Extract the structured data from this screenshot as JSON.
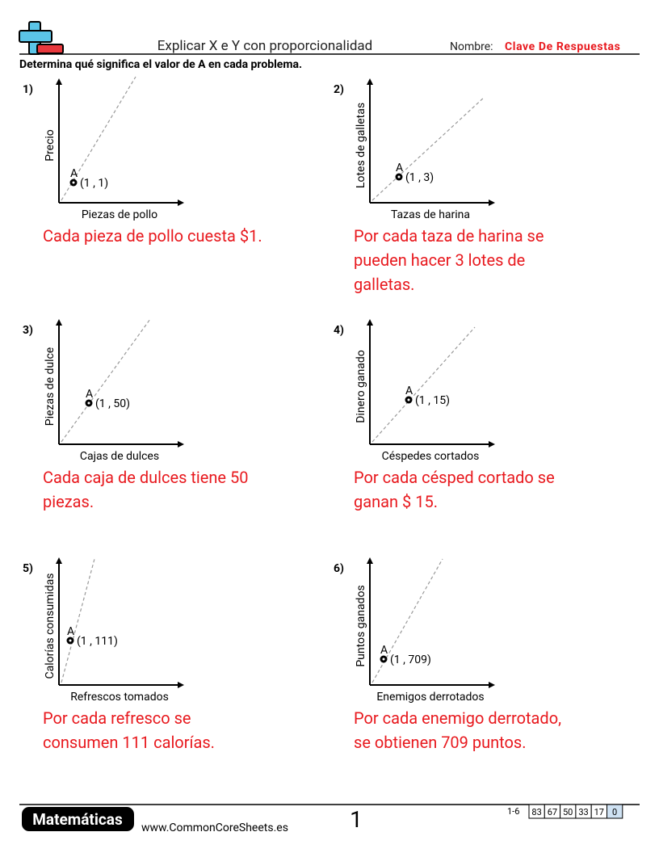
{
  "header": {
    "title": "Explicar X e Y con proporcionalidad",
    "name_label": "Nombre:",
    "name_value": "Clave De Respuestas",
    "instructions": "Determina qué significa el valor de A en cada problema."
  },
  "problems": [
    {
      "number": "1)",
      "y_label": "Precio",
      "x_label": "Piezas de pollo",
      "point_name": "A",
      "point_label": "(1 , 1)",
      "answer": [
        "Cada pieza de pollo cuesta $1."
      ]
    },
    {
      "number": "2)",
      "y_label": "Lotes de galletas",
      "x_label": "Tazas de harina",
      "point_name": "A",
      "point_label": "(1 , 3)",
      "answer": [
        "Por cada taza de harina se",
        "pueden hacer 3 lotes de",
        "galletas."
      ]
    },
    {
      "number": "3)",
      "y_label": "Piezas de dulce",
      "x_label": "Cajas de dulces",
      "point_name": "A",
      "point_label": "(1 , 50)",
      "answer": [
        "Cada caja de dulces tiene 50",
        "piezas."
      ]
    },
    {
      "number": "4)",
      "y_label": "Dinero ganado",
      "x_label": "Céspedes cortados",
      "point_name": "A",
      "point_label": "(1 , 15)",
      "answer": [
        "Por cada césped cortado se",
        "ganan $ 15."
      ]
    },
    {
      "number": "5)",
      "y_label": "Calorías consumidas",
      "x_label": "Refrescos tomados",
      "point_name": "A",
      "point_label": "(1 , 111)",
      "answer": [
        "Por cada refresco se",
        "consumen 111 calorías."
      ]
    },
    {
      "number": "6)",
      "y_label": "Puntos ganados",
      "x_label": "Enemigos derrotados",
      "point_name": "A",
      "point_label": "(1 , 709)",
      "answer": [
        "Por cada enemigo derrotado,",
        "se obtienen 709 puntos."
      ]
    }
  ],
  "footer": {
    "brand": "Matemáticas",
    "website": "www.CommonCoreSheets.es",
    "page": "1",
    "range": "1-6",
    "scores": [
      "83",
      "67",
      "50",
      "33",
      "17",
      "0"
    ]
  }
}
